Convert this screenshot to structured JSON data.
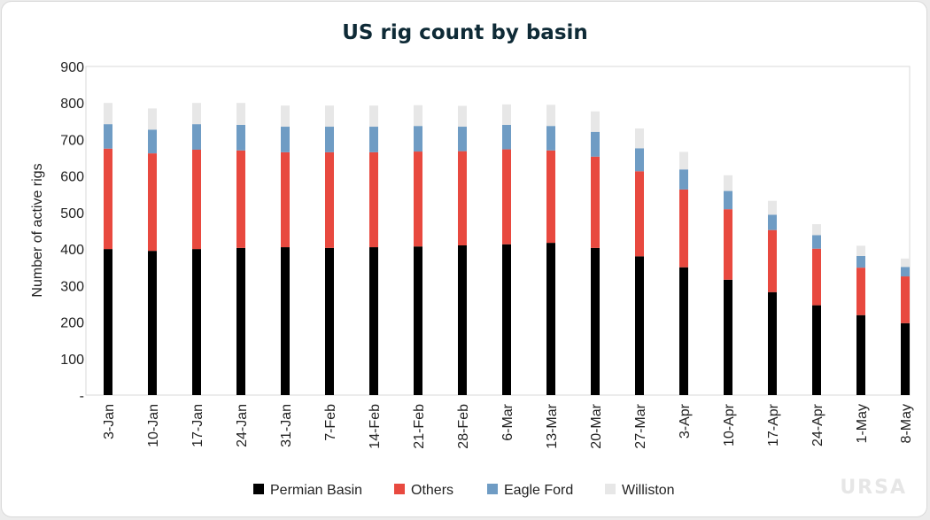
{
  "chart_data": {
    "type": "bar",
    "stacked": true,
    "title": "US rig count by basin",
    "ylabel": "Number of active rigs",
    "xlabel": "",
    "ylim": [
      0,
      900
    ],
    "yticks": [
      0,
      100,
      200,
      300,
      400,
      500,
      600,
      700,
      800,
      900
    ],
    "ytick_labels": [
      "-",
      "100",
      "200",
      "300",
      "400",
      "500",
      "600",
      "700",
      "800",
      "900"
    ],
    "categories": [
      "3-Jan",
      "10-Jan",
      "17-Jan",
      "24-Jan",
      "31-Jan",
      "7-Feb",
      "14-Feb",
      "21-Feb",
      "28-Feb",
      "6-Mar",
      "13-Mar",
      "20-Mar",
      "27-Mar",
      "3-Apr",
      "10-Apr",
      "17-Apr",
      "24-Apr",
      "1-May",
      "8-May"
    ],
    "series": [
      {
        "name": "Permian Basin",
        "color": "#000000",
        "values": [
          400,
          395,
          400,
          403,
          405,
          403,
          405,
          407,
          410,
          413,
          417,
          403,
          380,
          350,
          316,
          282,
          246,
          219,
          197
        ]
      },
      {
        "name": "Others",
        "color": "#e8493f",
        "values": [
          275,
          267,
          272,
          267,
          260,
          262,
          260,
          260,
          258,
          260,
          253,
          250,
          233,
          213,
          193,
          170,
          155,
          130,
          128
        ]
      },
      {
        "name": "Eagle Ford",
        "color": "#6f9cc4",
        "values": [
          67,
          65,
          70,
          70,
          70,
          70,
          70,
          70,
          67,
          67,
          67,
          68,
          63,
          55,
          50,
          42,
          37,
          32,
          26
        ]
      },
      {
        "name": "Williston",
        "color": "#e7e7e7",
        "values": [
          58,
          58,
          58,
          60,
          58,
          58,
          58,
          57,
          57,
          56,
          58,
          56,
          54,
          48,
          43,
          38,
          30,
          28,
          23
        ]
      }
    ],
    "legend": "bottom",
    "grid": false
  },
  "watermark": "URSA"
}
